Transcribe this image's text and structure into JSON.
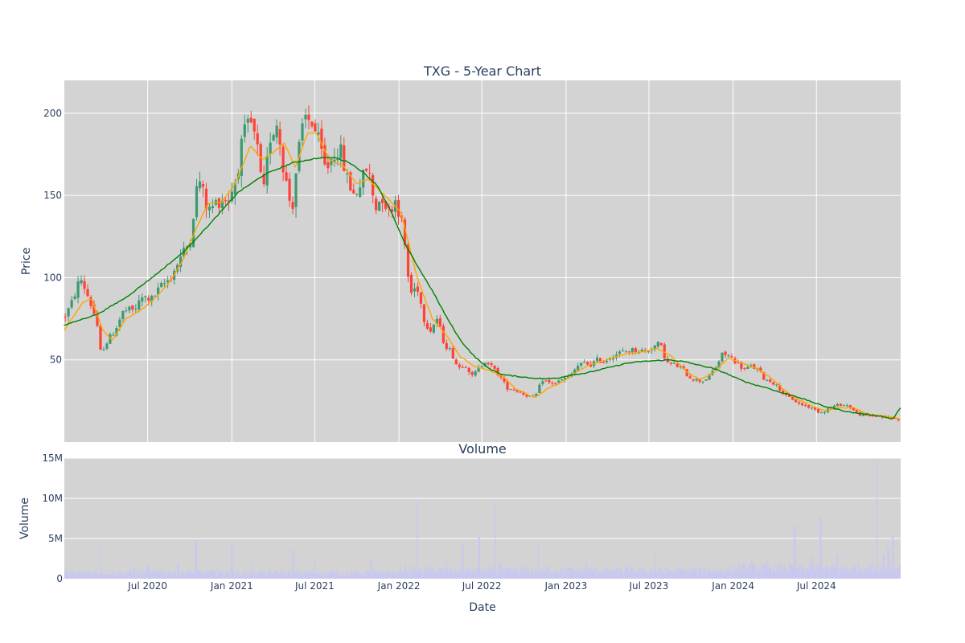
{
  "chart_data": [
    {
      "type": "candlestick",
      "title": "TXG - 5-Year Chart",
      "ylabel": "Price",
      "ylim": [
        0,
        220
      ],
      "yticks": [
        50,
        100,
        150,
        200
      ],
      "grid": true,
      "plot_bg": "#d3d3d3",
      "colors": {
        "up": "#3d9970",
        "down": "#ff4136",
        "ma_short": "#ffa500",
        "ma_long": "#008000"
      },
      "x_range": [
        "2020-01-01",
        "2025-01-01"
      ],
      "price_anchors": [
        [
          "2020-01-01",
          76
        ],
        [
          "2020-01-15",
          83
        ],
        [
          "2020-02-05",
          100
        ],
        [
          "2020-02-20",
          90
        ],
        [
          "2020-03-10",
          75
        ],
        [
          "2020-03-20",
          55
        ],
        [
          "2020-04-01",
          60
        ],
        [
          "2020-04-20",
          68
        ],
        [
          "2020-05-10",
          80
        ],
        [
          "2020-06-01",
          80
        ],
        [
          "2020-06-20",
          88
        ],
        [
          "2020-07-10",
          87
        ],
        [
          "2020-08-01",
          95
        ],
        [
          "2020-08-20",
          100
        ],
        [
          "2020-09-10",
          112
        ],
        [
          "2020-10-01",
          122
        ],
        [
          "2020-10-20",
          162
        ],
        [
          "2020-11-10",
          140
        ],
        [
          "2020-11-25",
          145
        ],
        [
          "2020-12-10",
          148
        ],
        [
          "2020-12-25",
          148
        ],
        [
          "2021-01-10",
          160
        ],
        [
          "2021-01-25",
          185
        ],
        [
          "2021-02-10",
          195
        ],
        [
          "2021-02-25",
          180
        ],
        [
          "2021-03-10",
          148
        ],
        [
          "2021-03-25",
          185
        ],
        [
          "2021-04-10",
          195
        ],
        [
          "2021-04-25",
          165
        ],
        [
          "2021-05-12",
          140
        ],
        [
          "2021-05-25",
          175
        ],
        [
          "2021-06-10",
          197
        ],
        [
          "2021-06-25",
          195
        ],
        [
          "2021-07-10",
          182
        ],
        [
          "2021-07-25",
          165
        ],
        [
          "2021-08-10",
          175
        ],
        [
          "2021-08-25",
          178
        ],
        [
          "2021-09-10",
          160
        ],
        [
          "2021-09-25",
          150
        ],
        [
          "2021-10-10",
          158
        ],
        [
          "2021-10-25",
          168
        ],
        [
          "2021-11-10",
          142
        ],
        [
          "2021-11-25",
          150
        ],
        [
          "2021-12-10",
          140
        ],
        [
          "2021-12-25",
          148
        ],
        [
          "2022-01-10",
          130
        ],
        [
          "2022-01-25",
          90
        ],
        [
          "2022-02-10",
          95
        ],
        [
          "2022-02-25",
          75
        ],
        [
          "2022-03-10",
          68
        ],
        [
          "2022-03-25",
          75
        ],
        [
          "2022-04-10",
          60
        ],
        [
          "2022-04-25",
          55
        ],
        [
          "2022-05-10",
          45
        ],
        [
          "2022-05-25",
          48
        ],
        [
          "2022-06-10",
          40
        ],
        [
          "2022-06-25",
          45
        ],
        [
          "2022-07-10",
          50
        ],
        [
          "2022-07-25",
          45
        ],
        [
          "2022-08-10",
          40
        ],
        [
          "2022-08-25",
          33
        ],
        [
          "2022-09-10",
          32
        ],
        [
          "2022-09-25",
          30
        ],
        [
          "2022-10-10",
          28
        ],
        [
          "2022-10-25",
          27
        ],
        [
          "2022-11-10",
          38
        ],
        [
          "2022-11-25",
          36
        ],
        [
          "2022-12-10",
          36
        ],
        [
          "2022-12-25",
          38
        ],
        [
          "2023-01-10",
          40
        ],
        [
          "2023-01-25",
          46
        ],
        [
          "2023-02-10",
          48
        ],
        [
          "2023-02-25",
          47
        ],
        [
          "2023-03-10",
          50
        ],
        [
          "2023-03-25",
          49
        ],
        [
          "2023-04-10",
          52
        ],
        [
          "2023-04-25",
          54
        ],
        [
          "2023-05-10",
          55
        ],
        [
          "2023-05-25",
          56
        ],
        [
          "2023-06-10",
          56
        ],
        [
          "2023-06-25",
          55
        ],
        [
          "2023-07-10",
          58
        ],
        [
          "2023-07-25",
          60
        ],
        [
          "2023-08-10",
          48
        ],
        [
          "2023-08-25",
          47
        ],
        [
          "2023-09-10",
          45
        ],
        [
          "2023-09-25",
          40
        ],
        [
          "2023-10-10",
          38
        ],
        [
          "2023-10-25",
          37
        ],
        [
          "2023-11-10",
          40
        ],
        [
          "2023-11-25",
          46
        ],
        [
          "2023-12-10",
          54
        ],
        [
          "2023-12-25",
          52
        ],
        [
          "2024-01-10",
          48
        ],
        [
          "2024-01-25",
          44
        ],
        [
          "2024-02-10",
          46
        ],
        [
          "2024-02-25",
          44
        ],
        [
          "2024-03-10",
          38
        ],
        [
          "2024-03-25",
          37
        ],
        [
          "2024-04-10",
          33
        ],
        [
          "2024-04-25",
          28
        ],
        [
          "2024-05-10",
          26
        ],
        [
          "2024-05-25",
          23
        ],
        [
          "2024-06-10",
          22
        ],
        [
          "2024-06-25",
          20
        ],
        [
          "2024-07-10",
          18
        ],
        [
          "2024-07-25",
          20
        ],
        [
          "2024-08-10",
          22
        ],
        [
          "2024-08-25",
          23
        ],
        [
          "2024-09-10",
          22
        ],
        [
          "2024-09-25",
          18
        ],
        [
          "2024-10-10",
          16
        ],
        [
          "2024-10-25",
          16
        ],
        [
          "2024-11-10",
          16
        ],
        [
          "2024-11-25",
          15
        ],
        [
          "2024-12-10",
          15
        ],
        [
          "2024-12-25",
          14
        ],
        [
          "2025-01-01",
          14
        ]
      ],
      "ma_short_anchors": [
        [
          "2020-01-01",
          68
        ],
        [
          "2020-02-10",
          85
        ],
        [
          "2020-03-01",
          87
        ],
        [
          "2020-03-25",
          68
        ],
        [
          "2020-04-15",
          62
        ],
        [
          "2020-05-15",
          75
        ],
        [
          "2020-06-15",
          80
        ],
        [
          "2020-07-15",
          87
        ],
        [
          "2020-08-15",
          96
        ],
        [
          "2020-09-15",
          110
        ],
        [
          "2020-10-15",
          130
        ],
        [
          "2020-11-10",
          145
        ],
        [
          "2020-12-10",
          146
        ],
        [
          "2021-01-10",
          158
        ],
        [
          "2021-02-10",
          180
        ],
        [
          "2021-03-10",
          172
        ],
        [
          "2021-04-10",
          178
        ],
        [
          "2021-04-25",
          182
        ],
        [
          "2021-05-20",
          167
        ],
        [
          "2021-06-15",
          188
        ],
        [
          "2021-07-05",
          188
        ],
        [
          "2021-08-01",
          172
        ],
        [
          "2021-09-01",
          168
        ],
        [
          "2021-10-01",
          157
        ],
        [
          "2021-10-25",
          160
        ],
        [
          "2021-12-01",
          150
        ],
        [
          "2022-01-05",
          140
        ],
        [
          "2022-02-10",
          100
        ],
        [
          "2022-03-15",
          75
        ],
        [
          "2022-04-15",
          65
        ],
        [
          "2022-05-15",
          52
        ],
        [
          "2022-06-15",
          46
        ],
        [
          "2022-07-15",
          44
        ],
        [
          "2022-08-15",
          40
        ],
        [
          "2022-09-15",
          32
        ],
        [
          "2022-10-25",
          27
        ],
        [
          "2022-11-20",
          32
        ],
        [
          "2022-12-20",
          36
        ],
        [
          "2023-01-20",
          42
        ],
        [
          "2023-02-20",
          47
        ],
        [
          "2023-03-20",
          49
        ],
        [
          "2023-04-20",
          52
        ],
        [
          "2023-05-20",
          54
        ],
        [
          "2023-06-20",
          55
        ],
        [
          "2023-07-20",
          57
        ],
        [
          "2023-08-20",
          52
        ],
        [
          "2023-09-20",
          43
        ],
        [
          "2023-10-20",
          38
        ],
        [
          "2023-11-20",
          42
        ],
        [
          "2023-12-20",
          51
        ],
        [
          "2024-01-20",
          48
        ],
        [
          "2024-02-20",
          45
        ],
        [
          "2024-03-20",
          40
        ],
        [
          "2024-04-20",
          32
        ],
        [
          "2024-05-20",
          26
        ],
        [
          "2024-06-20",
          22
        ],
        [
          "2024-07-20",
          19
        ],
        [
          "2024-08-20",
          21
        ],
        [
          "2024-09-20",
          21
        ],
        [
          "2024-10-20",
          17
        ],
        [
          "2024-11-20",
          16
        ],
        [
          "2024-12-20",
          15
        ],
        [
          "2025-01-01",
          14
        ]
      ],
      "ma_long_anchors": [
        [
          "2019-12-31",
          71
        ],
        [
          "2020-03-15",
          78
        ],
        [
          "2020-05-15",
          88
        ],
        [
          "2020-07-15",
          101
        ],
        [
          "2020-09-15",
          115
        ],
        [
          "2020-11-15",
          133
        ],
        [
          "2021-01-15",
          152
        ],
        [
          "2021-03-15",
          163
        ],
        [
          "2021-05-15",
          170
        ],
        [
          "2021-07-15",
          173
        ],
        [
          "2021-08-15",
          173
        ],
        [
          "2021-09-15",
          170
        ],
        [
          "2021-10-15",
          164
        ],
        [
          "2021-11-15",
          156
        ],
        [
          "2021-12-15",
          140
        ],
        [
          "2022-01-15",
          120
        ],
        [
          "2022-02-15",
          105
        ],
        [
          "2022-03-15",
          92
        ],
        [
          "2022-04-15",
          76
        ],
        [
          "2022-05-15",
          62
        ],
        [
          "2022-06-15",
          52
        ],
        [
          "2022-07-15",
          45
        ],
        [
          "2022-08-15",
          41
        ],
        [
          "2022-09-15",
          40
        ],
        [
          "2022-10-15",
          39
        ],
        [
          "2022-11-15",
          38.5
        ],
        [
          "2022-12-15",
          39
        ],
        [
          "2023-01-15",
          41
        ],
        [
          "2023-02-15",
          42
        ],
        [
          "2023-03-15",
          44
        ],
        [
          "2023-04-15",
          46
        ],
        [
          "2023-05-15",
          48
        ],
        [
          "2023-06-15",
          49
        ],
        [
          "2023-07-15",
          49.5
        ],
        [
          "2023-08-15",
          50
        ],
        [
          "2023-09-15",
          49
        ],
        [
          "2023-10-15",
          47
        ],
        [
          "2023-11-15",
          45
        ],
        [
          "2023-12-15",
          42
        ],
        [
          "2024-01-15",
          38
        ],
        [
          "2024-02-15",
          35
        ],
        [
          "2024-03-15",
          33
        ],
        [
          "2024-04-15",
          30
        ],
        [
          "2024-05-15",
          28
        ],
        [
          "2024-06-15",
          25
        ],
        [
          "2024-07-15",
          22
        ],
        [
          "2024-08-15",
          20
        ],
        [
          "2024-09-15",
          18
        ],
        [
          "2024-10-15",
          17
        ],
        [
          "2024-11-15",
          16
        ],
        [
          "2024-12-15",
          14
        ],
        [
          "2025-01-01",
          21
        ]
      ]
    },
    {
      "type": "bar",
      "title": "Volume",
      "ylabel": "Volume",
      "xlabel": "Date",
      "ylim": [
        0,
        15000000
      ],
      "yticks": [
        0,
        5000000,
        10000000,
        15000000
      ],
      "ytick_labels": [
        "0",
        "5M",
        "10M",
        "15M"
      ],
      "xticks": [
        "2020-07-01",
        "2021-01-01",
        "2021-07-01",
        "2022-01-01",
        "2022-07-01",
        "2023-01-01",
        "2023-07-01",
        "2024-01-01",
        "2024-07-01"
      ],
      "xtick_labels": [
        "Jul 2020",
        "Jan 2021",
        "Jul 2021",
        "Jan 2022",
        "Jul 2022",
        "Jan 2023",
        "Jul 2023",
        "Jan 2024",
        "Jul 2024"
      ],
      "bar_color": "#c8c8f0",
      "baseline_volume": 800000,
      "spikes": [
        [
          "2020-03-20",
          4000000
        ],
        [
          "2020-04-01",
          1200000
        ],
        [
          "2020-06-01",
          1500000
        ],
        [
          "2020-07-01",
          1800000
        ],
        [
          "2020-08-01",
          1500000
        ],
        [
          "2020-09-05",
          2000000
        ],
        [
          "2020-10-15",
          4800000
        ],
        [
          "2020-12-01",
          1300000
        ],
        [
          "2021-01-01",
          4500000
        ],
        [
          "2021-02-15",
          2600000
        ],
        [
          "2021-05-15",
          3600000
        ],
        [
          "2021-07-01",
          2200000
        ],
        [
          "2021-11-01",
          2500000
        ],
        [
          "2022-01-15",
          2000000
        ],
        [
          "2022-02-10",
          9800000
        ],
        [
          "2022-04-15",
          2000000
        ],
        [
          "2022-05-20",
          4200000
        ],
        [
          "2022-06-25",
          5200000
        ],
        [
          "2022-07-30",
          9300000
        ],
        [
          "2022-08-10",
          2000000
        ],
        [
          "2022-11-01",
          4000000
        ],
        [
          "2022-11-25",
          1800000
        ],
        [
          "2023-02-15",
          2000000
        ],
        [
          "2023-05-10",
          1800000
        ],
        [
          "2023-07-15",
          3200000
        ],
        [
          "2023-10-01",
          1800000
        ],
        [
          "2024-02-10",
          2300000
        ],
        [
          "2024-03-15",
          2300000
        ],
        [
          "2024-05-15",
          6600000
        ],
        [
          "2024-06-20",
          2600000
        ],
        [
          "2024-07-10",
          7600000
        ],
        [
          "2024-08-15",
          3000000
        ],
        [
          "2024-11-10",
          14500000
        ],
        [
          "2024-11-25",
          3000000
        ],
        [
          "2024-12-05",
          4000000
        ],
        [
          "2024-12-15",
          5500000
        ]
      ]
    }
  ]
}
